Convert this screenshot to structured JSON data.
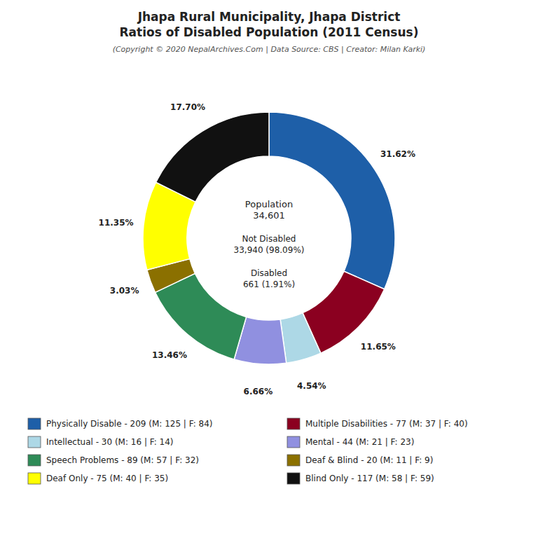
{
  "chart_data": {
    "type": "pie",
    "title": "Jhapa Rural Municipality, Jhapa District\nRatios of Disabled Population (2011 Census)",
    "subtitle": "(Copyright © 2020 NepalArchives.Com | Data Source: CBS | Creator: Milan Karki)",
    "categories": [
      "Physically Disable - 209 (M: 125 | F: 84)",
      "Multiple Disabilities - 77 (M: 37 | F: 40)",
      "Intellectual - 30 (M: 16 | F: 14)",
      "Mental - 44 (M: 21 | F: 23)",
      "Speech Problems - 89 (M: 57 | F: 32)",
      "Deaf & Blind - 20 (M: 11 | F: 9)",
      "Deaf Only - 75 (M: 40 | F: 35)",
      "Blind Only - 117 (M: 58 | F: 59)"
    ],
    "values": [
      31.62,
      11.65,
      4.54,
      6.66,
      13.46,
      3.03,
      11.35,
      17.7
    ],
    "value_labels": [
      "31.62%",
      "11.65%",
      "4.54%",
      "6.66%",
      "13.46%",
      "3.03%",
      "11.35%",
      "17.70%"
    ],
    "colors": [
      "#1e5fa8",
      "#8b0020",
      "#add8e6",
      "#9090e0",
      "#2e8b57",
      "#8b7000",
      "#ffff00",
      "#111111"
    ],
    "annotations": [
      "Population\n34,601",
      "Not Disabled\n33,940 (98.09%)",
      "Disabled\n661 (1.91%)"
    ],
    "data_labels": true,
    "legend": "bottom"
  }
}
